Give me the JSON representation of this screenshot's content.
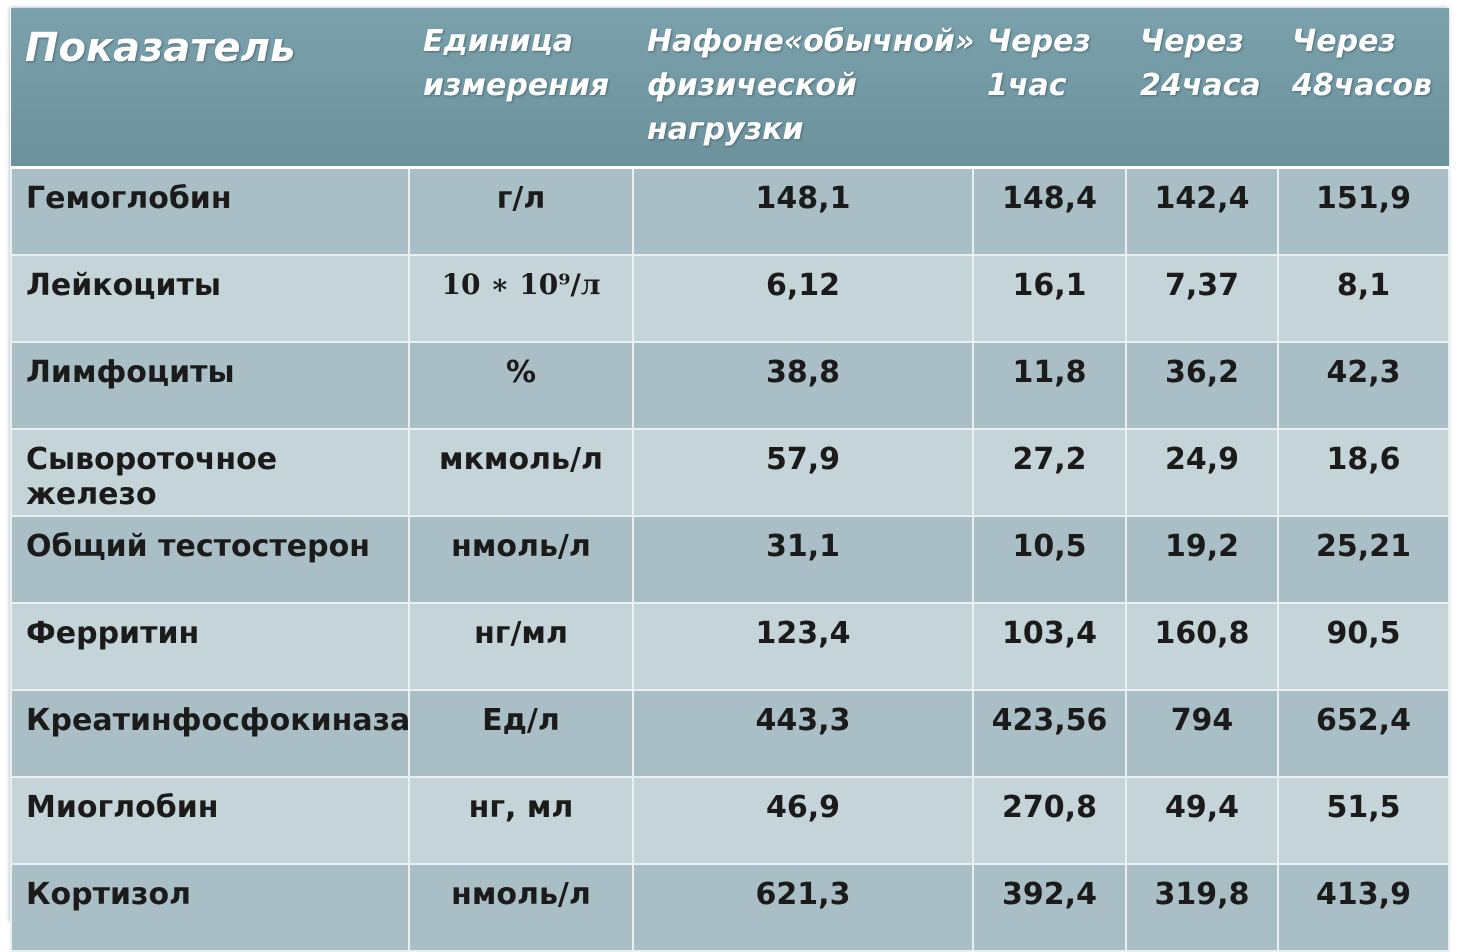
{
  "table": {
    "headers": [
      "Показатель",
      "Единица\nизмерения",
      "Нафоне«обычной»\nфизической\nнагрузки",
      "Через\n1час",
      "Через\n24часа",
      "Через\n48часов"
    ],
    "rows": [
      [
        "Гемоглобин",
        "г/л",
        "148,1",
        "148,4",
        "142,4",
        "151,9"
      ],
      [
        "Лейкоциты",
        "10 ∗ 10⁹/л",
        "6,12",
        "16,1",
        "7,37",
        "8,1"
      ],
      [
        "Лимфоциты",
        "%",
        "38,8",
        "11,8",
        "36,2",
        "42,3"
      ],
      [
        "Сывороточное железо",
        "мкмоль/л",
        "57,9",
        "27,2",
        "24,9",
        "18,6"
      ],
      [
        "Общий тестостерон",
        "нмоль/л",
        "31,1",
        "10,5",
        "19,2",
        "25,21"
      ],
      [
        "Ферритин",
        "нг/мл",
        "123,4",
        "103,4",
        "160,8",
        "90,5"
      ],
      [
        "Креатинфосфокиназа",
        "Ед/л",
        "443,3",
        "423,56",
        "794",
        "652,4"
      ],
      [
        "Миоглобин",
        "нг, мл",
        "46,9",
        "270,8",
        "49,4",
        "51,5"
      ],
      [
        "Кортизол",
        "нмоль/л",
        "621,3",
        "392,4",
        "319,8",
        "413,9"
      ]
    ]
  }
}
